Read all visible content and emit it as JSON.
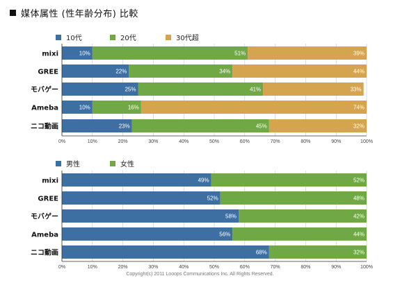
{
  "page": {
    "title": "媒体属性 (性年齢分布) 比較",
    "footer": "Copyright(c) 2011 Looops Communications Inc. All Rights Reserved."
  },
  "colors": {
    "blue": "#3d6fa3",
    "green": "#71a846",
    "gold": "#d4a54e",
    "grid": "#c8c8c8",
    "axis": "#333333"
  },
  "chart_data": [
    {
      "type": "bar",
      "orientation": "horizontal",
      "stacked": "percent",
      "categories": [
        "mixi",
        "GREE",
        "モバゲー",
        "Ameba",
        "ニコ動画"
      ],
      "series": [
        {
          "name": "10代",
          "color": "#3d6fa3",
          "values": [
            10,
            22,
            25,
            10,
            23
          ]
        },
        {
          "name": "20代",
          "color": "#71a846",
          "values": [
            51,
            34,
            41,
            16,
            45
          ]
        },
        {
          "name": "30代超",
          "color": "#d4a54e",
          "values": [
            39,
            44,
            33,
            74,
            32
          ]
        }
      ],
      "xlim": [
        0,
        100
      ],
      "xticks": [
        "0%",
        "10%",
        "20%",
        "30%",
        "40%",
        "50%",
        "60%",
        "70%",
        "80%",
        "90%",
        "100%"
      ],
      "value_suffix": "%",
      "grid": true,
      "legend": "top-left"
    },
    {
      "type": "bar",
      "orientation": "horizontal",
      "stacked": "percent",
      "categories": [
        "mixi",
        "GREE",
        "モバゲー",
        "Ameba",
        "ニコ動画"
      ],
      "series": [
        {
          "name": "男性",
          "color": "#3d6fa3",
          "values": [
            49,
            52,
            58,
            56,
            68
          ]
        },
        {
          "name": "女性",
          "color": "#71a846",
          "values": [
            52,
            48,
            42,
            44,
            32
          ]
        }
      ],
      "xlim": [
        0,
        100
      ],
      "xticks": [
        "0%",
        "10%",
        "20%",
        "30%",
        "40%",
        "50%",
        "60%",
        "70%",
        "80%",
        "90%",
        "100%"
      ],
      "value_suffix": "%",
      "grid": true,
      "legend": "top-left"
    }
  ]
}
